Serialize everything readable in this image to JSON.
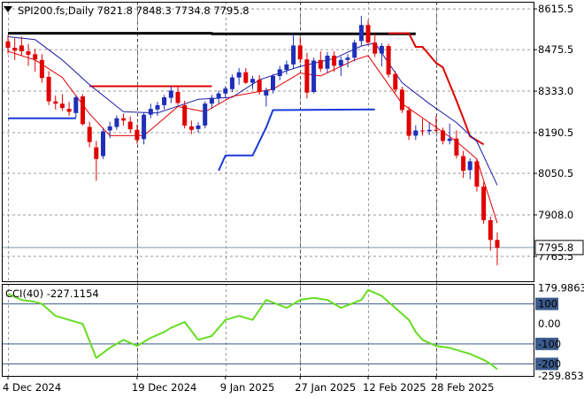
{
  "colors": {
    "bull": "#1f2fb8",
    "bear": "#e00000",
    "ma_fast": "#e00000",
    "ma_slow": "#1a1aa8",
    "level_black": "#000000",
    "stop_red": "#e00000",
    "stop_blue": "#1a3ad8",
    "cci_line": "#66dd22",
    "cci_levels": "#3a5a8a",
    "price_marker": "#7a9aaa",
    "grid": "#9a9a9a"
  },
  "chart_data": [
    {
      "type": "candlestick",
      "symbol": "SPI200.fs",
      "timeframe": "Daily",
      "ohlc_header": {
        "open": "7821.8",
        "high": "7848.3",
        "low": "7734.8",
        "close": "7795.8"
      },
      "header_text": "SPI200.fs,Daily  7821.8 7848.3 7734.8 7795.8",
      "ylim": [
        7680,
        8640
      ],
      "y_ticks": [
        "8615.5",
        "8475.5",
        "8333.0",
        "8190.5",
        "8050.5",
        "7908.0",
        "7765.5"
      ],
      "last_price_label": "7795.8",
      "x_ticks": [
        "4 Dec 2024",
        "19 Dec 2024",
        "9 Jan 2025",
        "27 Jan 2025",
        "12 Feb 2025",
        "28 Feb 2025"
      ],
      "candles": [
        [
          8504,
          8525,
          8462,
          8482
        ],
        [
          8482,
          8515,
          8440,
          8472
        ],
        [
          8490,
          8520,
          8455,
          8470
        ],
        [
          8470,
          8495,
          8420,
          8458
        ],
        [
          8460,
          8478,
          8400,
          8442
        ],
        [
          8440,
          8460,
          8362,
          8378
        ],
        [
          8382,
          8402,
          8285,
          8298
        ],
        [
          8298,
          8318,
          8270,
          8290
        ],
        [
          8290,
          8322,
          8265,
          8275
        ],
        [
          8272,
          8296,
          8248,
          8262
        ],
        [
          8258,
          8318,
          8242,
          8312
        ],
        [
          8315,
          8322,
          8215,
          8220
        ],
        [
          8210,
          8228,
          8140,
          8158
        ],
        [
          8140,
          8162,
          8025,
          8100
        ],
        [
          8110,
          8205,
          8100,
          8195
        ],
        [
          8198,
          8228,
          8172,
          8212
        ],
        [
          8210,
          8250,
          8200,
          8240
        ],
        [
          8240,
          8256,
          8215,
          8232
        ],
        [
          8228,
          8246,
          8190,
          8202
        ],
        [
          8200,
          8218,
          8152,
          8165
        ],
        [
          8168,
          8260,
          8150,
          8252
        ],
        [
          8252,
          8290,
          8240,
          8272
        ],
        [
          8270,
          8296,
          8248,
          8285
        ],
        [
          8285,
          8320,
          8270,
          8312
        ],
        [
          8310,
          8350,
          8292,
          8335
        ],
        [
          8330,
          8348,
          8285,
          8292
        ],
        [
          8285,
          8300,
          8205,
          8215
        ],
        [
          8212,
          8232,
          8185,
          8200
        ],
        [
          8203,
          8226,
          8190,
          8215
        ],
        [
          8215,
          8298,
          8205,
          8290
        ],
        [
          8290,
          8320,
          8272,
          8310
        ],
        [
          8310,
          8335,
          8290,
          8325
        ],
        [
          8325,
          8350,
          8310,
          8342
        ],
        [
          8340,
          8390,
          8330,
          8380
        ],
        [
          8380,
          8412,
          8355,
          8398
        ],
        [
          8398,
          8412,
          8358,
          8362
        ],
        [
          8362,
          8385,
          8340,
          8375
        ],
        [
          8372,
          8388,
          8320,
          8330
        ],
        [
          8318,
          8345,
          8280,
          8336
        ],
        [
          8336,
          8392,
          8325,
          8385
        ],
        [
          8385,
          8420,
          8370,
          8408
        ],
        [
          8406,
          8438,
          8390,
          8425
        ],
        [
          8425,
          8530,
          8410,
          8490
        ],
        [
          8490,
          8520,
          8430,
          8442
        ],
        [
          8442,
          8465,
          8308,
          8328
        ],
        [
          8330,
          8448,
          8325,
          8438
        ],
        [
          8440,
          8470,
          8400,
          8410
        ],
        [
          8410,
          8468,
          8395,
          8455
        ],
        [
          8455,
          8470,
          8400,
          8420
        ],
        [
          8420,
          8452,
          8385,
          8440
        ],
        [
          8440,
          8460,
          8415,
          8448
        ],
        [
          8448,
          8510,
          8435,
          8500
        ],
        [
          8505,
          8592,
          8490,
          8560
        ],
        [
          8560,
          8578,
          8490,
          8500
        ],
        [
          8500,
          8530,
          8450,
          8462
        ],
        [
          8462,
          8498,
          8418,
          8488
        ],
        [
          8488,
          8496,
          8380,
          8390
        ],
        [
          8392,
          8402,
          8328,
          8338
        ],
        [
          8338,
          8348,
          8258,
          8268
        ],
        [
          8268,
          8280,
          8165,
          8180
        ],
        [
          8180,
          8215,
          8165,
          8198
        ],
        [
          8198,
          8238,
          8180,
          8195
        ],
        [
          8195,
          8225,
          8182,
          8200
        ],
        [
          8200,
          8248,
          8190,
          8198
        ],
        [
          8198,
          8208,
          8150,
          8162
        ],
        [
          8162,
          8222,
          8150,
          8170
        ],
        [
          8170,
          8198,
          8102,
          8112
        ],
        [
          8110,
          8128,
          8035,
          8060
        ],
        [
          8062,
          8102,
          8030,
          8092
        ],
        [
          8092,
          8100,
          7988,
          8005
        ],
        [
          8005,
          8020,
          7878,
          7890
        ],
        [
          7890,
          7902,
          7785,
          7822
        ],
        [
          7822,
          7848,
          7735,
          7795
        ]
      ],
      "ma_fast": [
        [
          0,
          8470
        ],
        [
          4,
          8440
        ],
        [
          8,
          8380
        ],
        [
          12,
          8255
        ],
        [
          15,
          8180
        ],
        [
          20,
          8180
        ],
        [
          25,
          8280
        ],
        [
          29,
          8262
        ],
        [
          33,
          8315
        ],
        [
          39,
          8340
        ],
        [
          43,
          8395
        ],
        [
          46,
          8385
        ],
        [
          51,
          8440
        ],
        [
          53,
          8455
        ],
        [
          58,
          8290
        ],
        [
          62,
          8225
        ],
        [
          66,
          8160
        ],
        [
          69,
          8100
        ],
        [
          72,
          7880
        ]
      ],
      "ma_slow": [
        [
          0,
          8520
        ],
        [
          4,
          8510
        ],
        [
          8,
          8440
        ],
        [
          12,
          8355
        ],
        [
          17,
          8262
        ],
        [
          22,
          8258
        ],
        [
          28,
          8305
        ],
        [
          33,
          8312
        ],
        [
          37,
          8372
        ],
        [
          43,
          8418
        ],
        [
          48,
          8445
        ],
        [
          52,
          8488
        ],
        [
          54,
          8498
        ],
        [
          58,
          8362
        ],
        [
          62,
          8290
        ],
        [
          66,
          8225
        ],
        [
          69,
          8160
        ],
        [
          72,
          8010
        ]
      ],
      "level_black": [
        [
          0,
          8532
        ],
        [
          30,
          8532
        ],
        [
          30,
          8530
        ],
        [
          60,
          8530
        ]
      ],
      "stop_red": [
        [
          12,
          8350
        ],
        [
          30,
          8350
        ],
        [
          null,
          null
        ],
        [
          56,
          8532
        ],
        [
          59,
          8532
        ],
        [
          60,
          8485
        ],
        [
          61,
          8485
        ],
        [
          63,
          8430
        ],
        [
          64,
          8415
        ],
        [
          66,
          8300
        ],
        [
          67,
          8240
        ],
        [
          68,
          8178
        ],
        [
          70,
          8150
        ]
      ],
      "stop_blue": [
        [
          0,
          8240
        ],
        [
          10,
          8240
        ],
        [
          null,
          null
        ],
        [
          31,
          8060
        ],
        [
          32,
          8112
        ],
        [
          36,
          8112
        ],
        [
          38,
          8208
        ],
        [
          39,
          8268
        ],
        [
          54,
          8270
        ]
      ]
    },
    {
      "type": "line",
      "indicator": "CCI(40)",
      "value_label": "-227.1154",
      "header_text": "CCI(40) -227.1154",
      "ylim": [
        -260,
        200
      ],
      "y_ticks": [
        "179.9863",
        "100",
        "0.00",
        "-100",
        "-200",
        "-259.8537"
      ],
      "levels": [
        100,
        -100,
        -200
      ],
      "values": [
        [
          0,
          150
        ],
        [
          2,
          120
        ],
        [
          4,
          110
        ],
        [
          5,
          100
        ],
        [
          7,
          40
        ],
        [
          9,
          20
        ],
        [
          11,
          0
        ],
        [
          13,
          -170
        ],
        [
          15,
          -120
        ],
        [
          17,
          -80
        ],
        [
          19,
          -110
        ],
        [
          21,
          -70
        ],
        [
          23,
          -40
        ],
        [
          24,
          -20
        ],
        [
          26,
          10
        ],
        [
          28,
          -80
        ],
        [
          30,
          -60
        ],
        [
          32,
          20
        ],
        [
          34,
          40
        ],
        [
          36,
          20
        ],
        [
          38,
          120
        ],
        [
          41,
          80
        ],
        [
          43,
          120
        ],
        [
          45,
          130
        ],
        [
          47,
          120
        ],
        [
          49,
          80
        ],
        [
          52,
          120
        ],
        [
          53,
          170
        ],
        [
          55,
          140
        ],
        [
          57,
          80
        ],
        [
          59,
          20
        ],
        [
          60,
          -40
        ],
        [
          61,
          -80
        ],
        [
          63,
          -110
        ],
        [
          65,
          -120
        ],
        [
          67,
          -140
        ],
        [
          68,
          -150
        ],
        [
          70,
          -180
        ],
        [
          71,
          -200
        ],
        [
          72,
          -227
        ]
      ]
    }
  ]
}
